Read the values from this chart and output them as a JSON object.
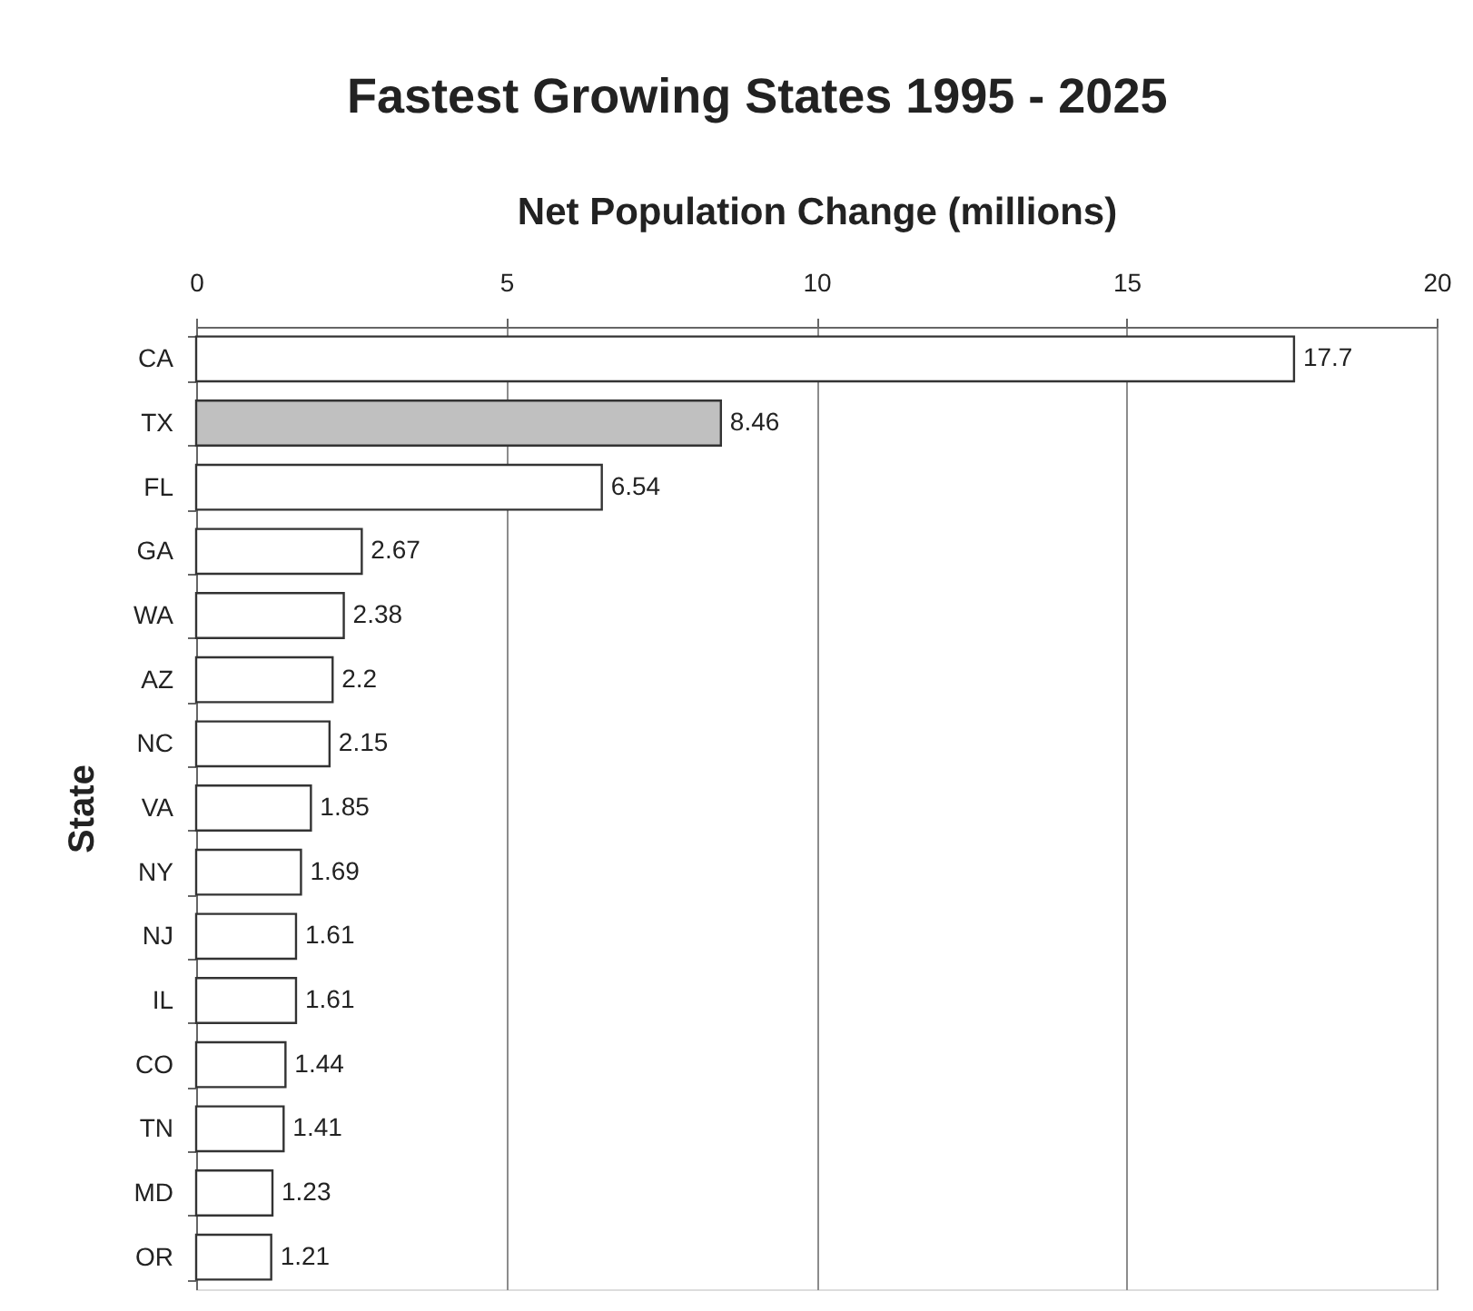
{
  "chart_data": {
    "type": "bar",
    "orientation": "horizontal",
    "title": "Fastest Growing States 1995 - 2025",
    "xlabel": "Net Population Change (millions)",
    "ylabel": "State",
    "categories": [
      "CA",
      "TX",
      "FL",
      "GA",
      "WA",
      "AZ",
      "NC",
      "VA",
      "NY",
      "NJ",
      "IL",
      "CO",
      "TN",
      "MD",
      "OR"
    ],
    "values": [
      17.7,
      8.46,
      6.54,
      2.67,
      2.38,
      2.2,
      2.15,
      1.85,
      1.69,
      1.61,
      1.61,
      1.44,
      1.41,
      1.23,
      1.21
    ],
    "colors": [
      "#ffffff",
      "#c0c0c0",
      "#ffffff",
      "#ffffff",
      "#ffffff",
      "#ffffff",
      "#ffffff",
      "#ffffff",
      "#ffffff",
      "#ffffff",
      "#ffffff",
      "#ffffff",
      "#ffffff",
      "#ffffff",
      "#ffffff"
    ],
    "xlim": [
      0,
      20
    ],
    "xticks": [
      0,
      5,
      10,
      15,
      20
    ],
    "grid": "x",
    "data_labels": true
  }
}
